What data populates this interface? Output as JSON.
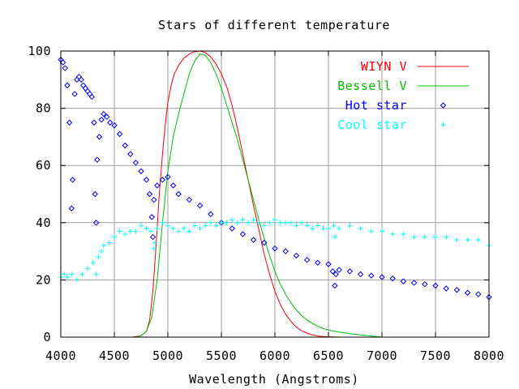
{
  "chart_data": {
    "type": "line",
    "title": "Stars of different temperature",
    "xlabel": "Wavelength (Angstroms)",
    "ylabel": "",
    "xlim": [
      4000,
      8000
    ],
    "ylim": [
      0,
      100
    ],
    "xticks": [
      4000,
      4500,
      5000,
      5500,
      6000,
      6500,
      7000,
      7500,
      8000
    ],
    "yticks": [
      0,
      20,
      40,
      60,
      80,
      100
    ],
    "grid": true,
    "legend_position": "top-right",
    "series": [
      {
        "name": "WIYN V",
        "style": "line",
        "color": "#ff0000",
        "x": [
          4670,
          4750,
          4800,
          4830,
          4860,
          4890,
          4920,
          4950,
          4980,
          5000,
          5030,
          5060,
          5100,
          5150,
          5200,
          5250,
          5300,
          5350,
          5400,
          5450,
          5500,
          5550,
          5600,
          5650,
          5700,
          5750,
          5800,
          5850,
          5900,
          5950,
          6000,
          6050,
          6100,
          6150,
          6200,
          6250,
          6300,
          6350,
          6400,
          6450,
          6500,
          6550,
          6600,
          6650,
          6700
        ],
        "y": [
          0,
          0.5,
          2,
          6,
          16,
          32,
          50,
          64,
          76,
          82,
          88,
          92,
          95,
          97.5,
          99,
          99.8,
          100,
          99.5,
          98,
          95.5,
          92,
          87.5,
          81,
          73,
          64,
          55,
          46,
          37.5,
          29,
          22,
          16,
          11.5,
          8,
          5.5,
          3.5,
          2.2,
          1.4,
          0.8,
          0.4,
          0.2,
          0.1,
          0.05,
          0,
          0,
          0
        ]
      },
      {
        "name": "Bessell V",
        "style": "line",
        "color": "#00c000",
        "x": [
          4700,
          4750,
          4800,
          4850,
          4900,
          4950,
          5000,
          5050,
          5100,
          5150,
          5200,
          5250,
          5300,
          5350,
          5400,
          5450,
          5500,
          5550,
          5600,
          5650,
          5700,
          5750,
          5800,
          5850,
          5900,
          5950,
          6000,
          6050,
          6100,
          6150,
          6200,
          6250,
          6300,
          6350,
          6400,
          6450,
          6500,
          6550,
          6600,
          6700,
          6800,
          6900,
          7000
        ],
        "y": [
          0,
          0.5,
          2,
          7,
          20,
          40,
          58,
          70,
          78,
          85,
          92,
          96.5,
          99,
          98.5,
          96,
          92,
          87,
          81,
          75,
          69,
          62,
          55,
          48,
          41,
          34.5,
          28.5,
          23,
          18.5,
          15,
          12,
          9.5,
          7.5,
          6,
          4.8,
          3.8,
          3,
          2.5,
          2.1,
          1.8,
          1.2,
          0.8,
          0.4,
          0
        ]
      },
      {
        "name": "Hot star",
        "style": "points",
        "marker": "diamond",
        "color": "#0000ff",
        "x": [
          4000,
          4020,
          4040,
          4060,
          4080,
          4100,
          4110,
          4130,
          4150,
          4170,
          4190,
          4210,
          4230,
          4250,
          4270,
          4290,
          4310,
          4320,
          4330,
          4340,
          4360,
          4380,
          4400,
          4430,
          4460,
          4500,
          4550,
          4600,
          4650,
          4700,
          4750,
          4800,
          4830,
          4850,
          4860,
          4870,
          4900,
          4950,
          5000,
          5050,
          5100,
          5200,
          5300,
          5400,
          5500,
          5600,
          5700,
          5800,
          5900,
          6000,
          6100,
          6200,
          6300,
          6400,
          6500,
          6540,
          6560,
          6570,
          6600,
          6700,
          6800,
          6900,
          7000,
          7100,
          7200,
          7300,
          7400,
          7500,
          7600,
          7700,
          7800,
          7900,
          8000
        ],
        "y": [
          97,
          96,
          94,
          88,
          75,
          45,
          55,
          85,
          90,
          91,
          90,
          88,
          87,
          86,
          85,
          84,
          75,
          50,
          40,
          62,
          70,
          76,
          78,
          77,
          75,
          74,
          71,
          67,
          64,
          61,
          58,
          55,
          50,
          42,
          35,
          48,
          53,
          55,
          56,
          53,
          50,
          48,
          46,
          43,
          40,
          38,
          36,
          34,
          33,
          31,
          30,
          28.5,
          27,
          26,
          25.5,
          23,
          18,
          22,
          23.5,
          23,
          22,
          21.5,
          21,
          20.5,
          19.5,
          19,
          18.5,
          18,
          17,
          16.5,
          15.5,
          15,
          14
        ]
      },
      {
        "name": "Cool star",
        "style": "points",
        "marker": "plus",
        "color": "#00ffff",
        "x": [
          4000,
          4030,
          4060,
          4100,
          4150,
          4200,
          4250,
          4300,
          4330,
          4350,
          4380,
          4400,
          4450,
          4500,
          4550,
          4600,
          4650,
          4700,
          4750,
          4800,
          4840,
          4870,
          4880,
          4900,
          4950,
          5000,
          5050,
          5100,
          5150,
          5200,
          5250,
          5300,
          5350,
          5400,
          5450,
          5500,
          5550,
          5600,
          5650,
          5700,
          5750,
          5800,
          5850,
          5900,
          5950,
          6000,
          6050,
          6100,
          6150,
          6200,
          6250,
          6300,
          6350,
          6400,
          6450,
          6500,
          6550,
          6560,
          6600,
          6700,
          6800,
          6900,
          7000,
          7100,
          7200,
          7300,
          7400,
          7500,
          7600,
          7700,
          7800,
          7900,
          8000
        ],
        "y": [
          21,
          22,
          21,
          22,
          20,
          22,
          24,
          26,
          22,
          28,
          30,
          32,
          33,
          35,
          37,
          36,
          37,
          37,
          39,
          38,
          37,
          31,
          33,
          38,
          40,
          39,
          38,
          37,
          38,
          37,
          39,
          38,
          39,
          40,
          39,
          40,
          40,
          41,
          40,
          41,
          40,
          41,
          40,
          39,
          40,
          41,
          40,
          40,
          40,
          39,
          40,
          39,
          38,
          39,
          38,
          38,
          39,
          35,
          38,
          39,
          38,
          37,
          37,
          36,
          36,
          35,
          35,
          35,
          35,
          34,
          34,
          34,
          32
        ]
      }
    ]
  }
}
